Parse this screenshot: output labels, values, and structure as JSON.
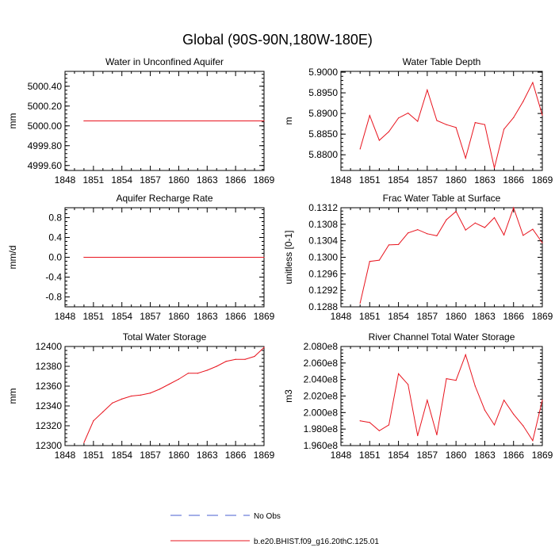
{
  "page": {
    "title": "Global (90S-90N,180W-180E)"
  },
  "legend": {
    "entries": [
      {
        "label": "No Obs",
        "style": "dashed",
        "color": "#4a5fd0"
      },
      {
        "label": "b.e20.BHIST.f09_g16.20thC.125.01",
        "style": "solid",
        "color": "#e8141e"
      }
    ]
  },
  "chart_data": [
    {
      "type": "line",
      "title": "Water in Unconfined Aquifer",
      "ylabel": "mm",
      "xlabel": "",
      "xlim": [
        1848,
        1869
      ],
      "ylim": [
        4999.55,
        5000.55
      ],
      "xticks": [
        1848,
        1851,
        1854,
        1857,
        1860,
        1863,
        1866,
        1869
      ],
      "xtick_labels": [
        "1848",
        "1851",
        "1854",
        "1857",
        "1860",
        "1863",
        "1866",
        "1869"
      ],
      "yticks": [
        4999.6,
        4999.8,
        5000.0,
        5000.2,
        5000.4
      ],
      "ytick_labels": [
        "4999.60",
        "4999.80",
        "5000.00",
        "5000.20",
        "5000.40"
      ],
      "series": [
        {
          "color": "#e8141e",
          "x": [
            1850,
            1869
          ],
          "y": [
            5000.05,
            5000.05
          ]
        }
      ]
    },
    {
      "type": "line",
      "title": "Water Table Depth",
      "ylabel": "m",
      "xlabel": "",
      "xlim": [
        1848,
        1869
      ],
      "ylim": [
        5.8762,
        5.9002
      ],
      "xticks": [
        1848,
        1851,
        1854,
        1857,
        1860,
        1863,
        1866,
        1869
      ],
      "xtick_labels": [
        "1848",
        "1851",
        "1854",
        "1857",
        "1860",
        "1863",
        "1866",
        "1869"
      ],
      "yticks": [
        5.88,
        5.885,
        5.89,
        5.895,
        5.9
      ],
      "ytick_labels": [
        "5.8800",
        "5.8850",
        "5.8900",
        "5.8950",
        "5.9000"
      ],
      "series": [
        {
          "color": "#e8141e",
          "x": [
            1850,
            1851,
            1852,
            1853,
            1854,
            1855,
            1856,
            1857,
            1858,
            1859,
            1860,
            1861,
            1862,
            1863,
            1864,
            1865,
            1866,
            1867,
            1868,
            1869
          ],
          "y": [
            5.8814,
            5.8895,
            5.8835,
            5.8856,
            5.8889,
            5.8901,
            5.8881,
            5.8957,
            5.8883,
            5.8873,
            5.8866,
            5.8792,
            5.8878,
            5.8873,
            5.8768,
            5.8862,
            5.889,
            5.8929,
            5.8975,
            5.8896
          ]
        }
      ]
    },
    {
      "type": "line",
      "title": "Aquifer Recharge Rate",
      "ylabel": "mm/d",
      "xlabel": "",
      "xlim": [
        1848,
        1869
      ],
      "ylim": [
        -1.0,
        1.0
      ],
      "xticks": [
        1848,
        1851,
        1854,
        1857,
        1860,
        1863,
        1866,
        1869
      ],
      "xtick_labels": [
        "1848",
        "1851",
        "1854",
        "1857",
        "1860",
        "1863",
        "1866",
        "1869"
      ],
      "yticks": [
        -0.8,
        -0.4,
        0.0,
        0.4,
        0.8
      ],
      "ytick_labels": [
        "-0.8",
        "-0.4",
        "0.0",
        "0.4",
        "0.8"
      ],
      "series": [
        {
          "color": "#e8141e",
          "x": [
            1850,
            1869
          ],
          "y": [
            0.0,
            0.0
          ]
        }
      ]
    },
    {
      "type": "line",
      "title": "Frac Water Table at Surface",
      "ylabel": "unitless [0-1]",
      "xlabel": "",
      "xlim": [
        1848,
        1869
      ],
      "ylim": [
        0.1288,
        0.1312
      ],
      "xticks": [
        1848,
        1851,
        1854,
        1857,
        1860,
        1863,
        1866,
        1869
      ],
      "xtick_labels": [
        "1848",
        "1851",
        "1854",
        "1857",
        "1860",
        "1863",
        "1866",
        "1869"
      ],
      "yticks": [
        0.1288,
        0.1292,
        0.1296,
        0.13,
        0.1304,
        0.1308,
        0.1312
      ],
      "ytick_labels": [
        "0.1288",
        "0.1292",
        "0.1296",
        "0.1300",
        "0.1304",
        "0.1308",
        "0.1312"
      ],
      "series": [
        {
          "color": "#e8141e",
          "x": [
            1850,
            1851,
            1852,
            1853,
            1854,
            1855,
            1856,
            1857,
            1858,
            1859,
            1860,
            1861,
            1862,
            1863,
            1864,
            1865,
            1866,
            1867,
            1868,
            1869
          ],
          "y": [
            0.12889,
            0.1299,
            0.12993,
            0.1303,
            0.13031,
            0.13059,
            0.13067,
            0.13057,
            0.13052,
            0.13091,
            0.13111,
            0.13066,
            0.13083,
            0.13072,
            0.13096,
            0.13054,
            0.1312,
            0.13053,
            0.13068,
            0.13035
          ]
        }
      ]
    },
    {
      "type": "line",
      "title": "Total Water Storage",
      "ylabel": "mm",
      "xlabel": "",
      "xlim": [
        1848,
        1869
      ],
      "ylim": [
        12300,
        12400
      ],
      "xticks": [
        1848,
        1851,
        1854,
        1857,
        1860,
        1863,
        1866,
        1869
      ],
      "xtick_labels": [
        "1848",
        "1851",
        "1854",
        "1857",
        "1860",
        "1863",
        "1866",
        "1869"
      ],
      "yticks": [
        12300,
        12320,
        12340,
        12360,
        12380,
        12400
      ],
      "ytick_labels": [
        "12300",
        "12320",
        "12340",
        "12360",
        "12380",
        "12400"
      ],
      "series": [
        {
          "color": "#e8141e",
          "x": [
            1850,
            1851,
            1852,
            1853,
            1854,
            1855,
            1856,
            1857,
            1858,
            1859,
            1860,
            1861,
            1862,
            1863,
            1864,
            1865,
            1866,
            1867,
            1868,
            1869
          ],
          "y": [
            12303,
            12325,
            12334,
            12343,
            12347,
            12350,
            12351,
            12353,
            12357,
            12362,
            12367,
            12373,
            12373,
            12376,
            12380,
            12385,
            12387,
            12387,
            12390,
            12399
          ]
        }
      ]
    },
    {
      "type": "line",
      "title": "River Channel Total Water Storage",
      "ylabel": "m3",
      "xlabel": "",
      "xlim": [
        1848,
        1869
      ],
      "ylim": [
        196000000.0,
        208000000.0
      ],
      "xticks": [
        1848,
        1851,
        1854,
        1857,
        1860,
        1863,
        1866,
        1869
      ],
      "xtick_labels": [
        "1848",
        "1851",
        "1854",
        "1857",
        "1860",
        "1863",
        "1866",
        "1869"
      ],
      "yticks": [
        196000000.0,
        198000000.0,
        200000000.0,
        202000000.0,
        204000000.0,
        206000000.0,
        208000000.0
      ],
      "ytick_labels": [
        "1.960e8",
        "1.980e8",
        "2.000e8",
        "2.020e8",
        "2.040e8",
        "2.060e8",
        "2.080e8"
      ],
      "series": [
        {
          "color": "#e8141e",
          "x": [
            1850,
            1851,
            1852,
            1853,
            1854,
            1855,
            1856,
            1857,
            1858,
            1859,
            1860,
            1861,
            1862,
            1863,
            1864,
            1865,
            1866,
            1867,
            1868,
            1869
          ],
          "y": [
            199000000.0,
            198800000.0,
            197800000.0,
            198500000.0,
            204700000.0,
            203400000.0,
            197200000.0,
            201500000.0,
            197300000.0,
            204100000.0,
            203900000.0,
            207000000.0,
            203200000.0,
            200300000.0,
            198500000.0,
            201500000.0,
            199800000.0,
            198400000.0,
            196600000.0,
            201500000.0
          ]
        }
      ]
    }
  ]
}
